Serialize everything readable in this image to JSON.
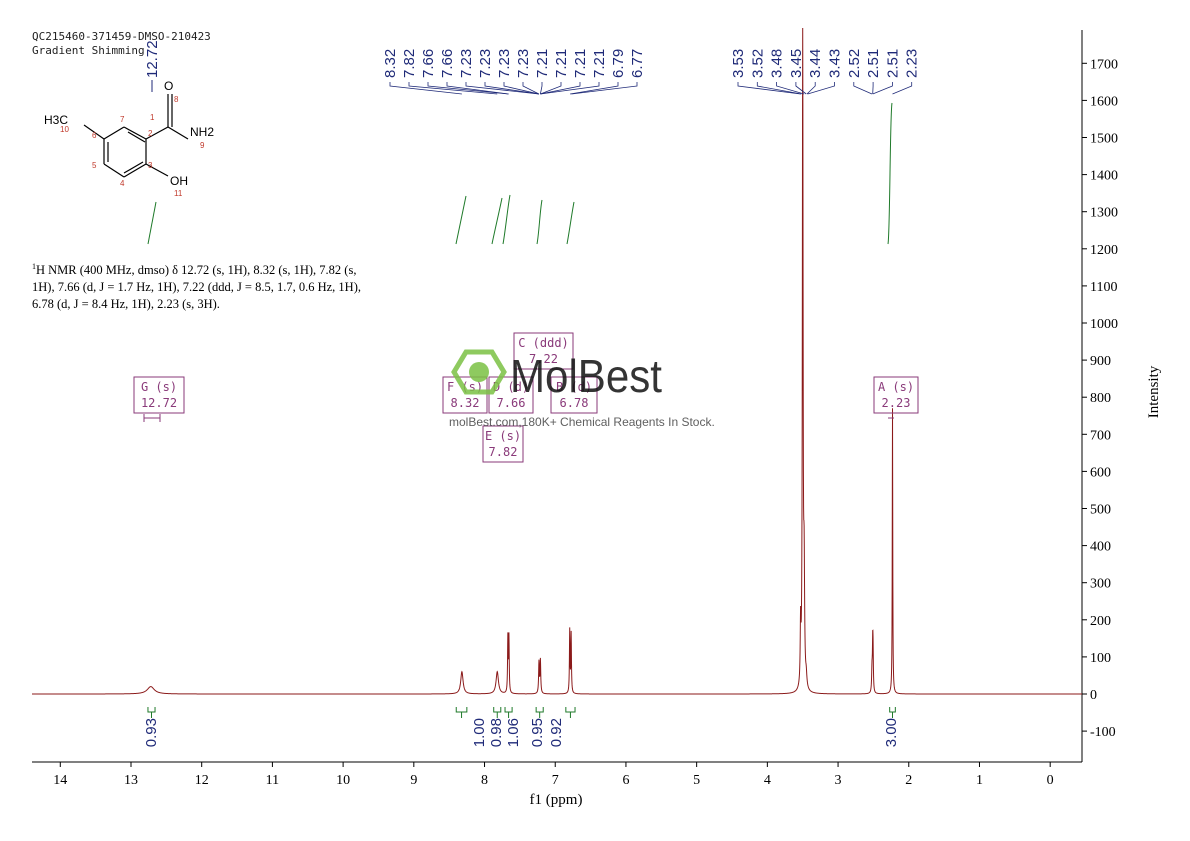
{
  "header": {
    "line1": "QC215460-371459-DMSO-210423",
    "line2": "Gradient Shimming"
  },
  "nmr_description": {
    "isotope_sup": "1",
    "text": "H NMR (400 MHz, dmso) δ 12.72 (s, 1H), 8.32 (s, 1H), 7.82 (s, 1H), 7.66 (d, J = 1.7 Hz, 1H), 7.22 (ddd, J = 8.5, 1.7, 0.6 Hz, 1H), 6.78 (d, J = 8.4 Hz, 1H), 2.23 (s, 3H)."
  },
  "structure": {
    "atom_labels": {
      "methyl": "H3C",
      "o": "O",
      "nh2": "NH2",
      "oh": "OH"
    },
    "atom_numbers": [
      "1",
      "2",
      "3",
      "4",
      "5",
      "6",
      "7",
      "8",
      "9",
      "10",
      "11"
    ]
  },
  "watermark": {
    "brand": "MolBest",
    "tagline": "molBest.com,180K+ Chemical Reagents In Stock."
  },
  "colors": {
    "spectrum": "#8b1a1a",
    "peak_labels": "#1f2a78",
    "integrals": "#1f7a2a",
    "multiplet_boxes": "#8a3a7a",
    "axis": "#000000"
  },
  "chart_data": {
    "type": "line",
    "xlabel": "f1 (ppm)",
    "ylabel": "Intensity",
    "xlim": [
      14.4,
      -0.45
    ],
    "ylim": [
      -180,
      1800
    ],
    "x_reversed": true,
    "x_ticks": [
      "14",
      "13",
      "12",
      "11",
      "10",
      "9",
      "8",
      "7",
      "6",
      "5",
      "4",
      "3",
      "2",
      "1",
      "0"
    ],
    "x_tick_values": [
      14,
      13,
      12,
      11,
      10,
      9,
      8,
      7,
      6,
      5,
      4,
      3,
      2,
      1,
      0
    ],
    "y_ticks": [
      "1700",
      "1600",
      "1500",
      "1400",
      "1300",
      "1200",
      "1100",
      "1000",
      "900",
      "800",
      "700",
      "600",
      "500",
      "400",
      "300",
      "200",
      "100",
      "0",
      "-100"
    ],
    "y_tick_values": [
      1700,
      1600,
      1500,
      1400,
      1300,
      1200,
      1100,
      1000,
      900,
      800,
      700,
      600,
      500,
      400,
      300,
      200,
      100,
      0,
      -100
    ],
    "peaks": [
      {
        "ppm": 12.72,
        "height": 20,
        "width": 0.06
      },
      {
        "ppm": 8.32,
        "height": 60,
        "width": 0.02
      },
      {
        "ppm": 7.82,
        "height": 60,
        "width": 0.02
      },
      {
        "ppm": 7.67,
        "height": 150,
        "width": 0.005
      },
      {
        "ppm": 7.655,
        "height": 150,
        "width": 0.005
      },
      {
        "ppm": 7.23,
        "height": 85,
        "width": 0.006
      },
      {
        "ppm": 7.21,
        "height": 90,
        "width": 0.006
      },
      {
        "ppm": 6.795,
        "height": 170,
        "width": 0.005
      },
      {
        "ppm": 6.775,
        "height": 160,
        "width": 0.005
      },
      {
        "ppm": 3.53,
        "height": 160,
        "width": 0.006
      },
      {
        "ppm": 3.5,
        "height": 1800,
        "width": 0.006
      },
      {
        "ppm": 3.48,
        "height": 300,
        "width": 0.008
      },
      {
        "ppm": 3.45,
        "height": 30,
        "width": 0.01
      },
      {
        "ppm": 2.52,
        "height": 60,
        "width": 0.006
      },
      {
        "ppm": 2.51,
        "height": 110,
        "width": 0.005
      },
      {
        "ppm": 2.505,
        "height": 90,
        "width": 0.005
      },
      {
        "ppm": 2.23,
        "height": 770,
        "width": 0.004
      }
    ],
    "peak_labels": [
      "12.72",
      "8.32",
      "7.82",
      "7.66",
      "7.66",
      "7.23",
      "7.23",
      "7.23",
      "7.23",
      "7.21",
      "7.21",
      "7.21",
      "7.21",
      "6.79",
      "6.77",
      "3.53",
      "3.52",
      "3.48",
      "3.45",
      "3.44",
      "3.43",
      "2.52",
      "2.51",
      "2.51",
      "2.23"
    ],
    "integrals": [
      {
        "ppm_center": 12.72,
        "ppm_range": [
          12.76,
          12.66
        ],
        "value": "0.93"
      },
      {
        "ppm_center": 8.32,
        "ppm_range": [
          8.4,
          8.25
        ],
        "value": "1.00"
      },
      {
        "ppm_center": 7.82,
        "ppm_range": [
          7.87,
          7.77
        ],
        "value": "0.98"
      },
      {
        "ppm_center": 7.66,
        "ppm_range": [
          7.71,
          7.61
        ],
        "value": "1.06"
      },
      {
        "ppm_center": 7.22,
        "ppm_range": [
          7.27,
          7.17
        ],
        "value": "0.95"
      },
      {
        "ppm_center": 6.78,
        "ppm_range": [
          6.85,
          6.72
        ],
        "value": "0.92"
      },
      {
        "ppm_center": 2.23,
        "ppm_range": [
          2.27,
          2.19
        ],
        "value": "3.00"
      }
    ],
    "multiplets": [
      {
        "letter": "G",
        "mult": "(s)",
        "shift": "12.72"
      },
      {
        "letter": "F",
        "mult": "(s)",
        "shift": "8.32"
      },
      {
        "letter": "D",
        "mult": "(d)",
        "shift": "7.66"
      },
      {
        "letter": "C",
        "mult": "(ddd)",
        "shift": "7.22"
      },
      {
        "letter": "B",
        "mult": "(d)",
        "shift": "6.78"
      },
      {
        "letter": "E",
        "mult": "(s)",
        "shift": "7.82"
      },
      {
        "letter": "A",
        "mult": "(s)",
        "shift": "2.23"
      }
    ]
  }
}
